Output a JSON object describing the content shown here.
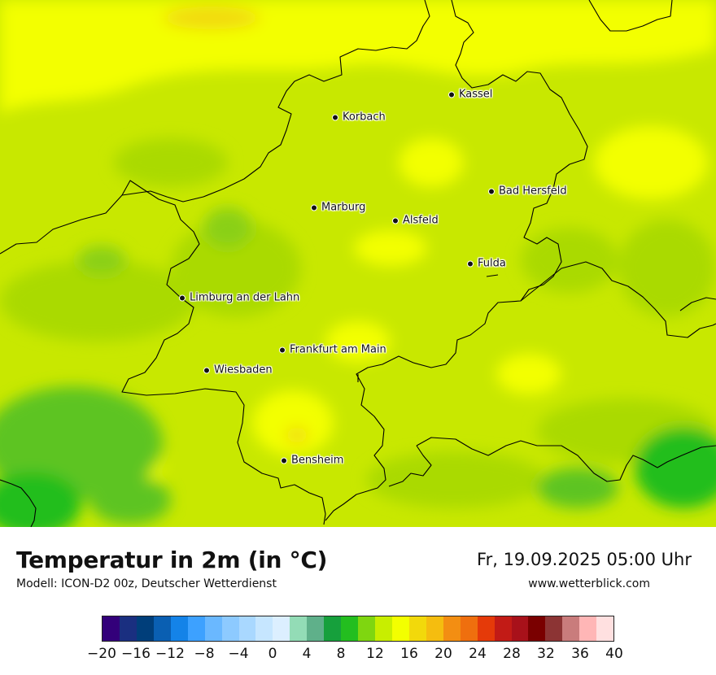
{
  "map": {
    "cities": [
      {
        "name": "Kassel"
      },
      {
        "name": "Korbach"
      },
      {
        "name": "Bad Hersfeld"
      },
      {
        "name": "Marburg"
      },
      {
        "name": "Alsfeld"
      },
      {
        "name": "Fulda"
      },
      {
        "name": "Limburg an der Lahn"
      },
      {
        "name": "Frankfurt am Main"
      },
      {
        "name": "Wiesbaden"
      },
      {
        "name": "Bensheim"
      }
    ]
  },
  "legend": {
    "title": "Temperatur in 2m (in °C)",
    "model": "Modell: ICON-D2 00z, Deutscher Wetterdienst",
    "datetime": "Fr, 19.09.2025 05:00 Uhr",
    "website": "www.wetterblick.com",
    "colorbar_colors": [
      "#33007a",
      "#1a2f80",
      "#003e7a",
      "#0a5fb2",
      "#1483e8",
      "#3da1ff",
      "#6ab8ff",
      "#8dcaff",
      "#a9d8ff",
      "#c6e6ff",
      "#dcefff",
      "#93dcb6",
      "#5fb08a",
      "#16a03c",
      "#23be1f",
      "#7fd610",
      "#c8ee00",
      "#f3ff00",
      "#f2d90b",
      "#f5bd0f",
      "#f38e12",
      "#ef6f0e",
      "#e53a09",
      "#c21b16",
      "#a8111a",
      "#7a0000",
      "#8c3434",
      "#c97c7c",
      "#ffb6b6",
      "#ffe0e0"
    ],
    "ticks": [
      "−20",
      "−16",
      "−12",
      "−8",
      "−4",
      "0",
      "4",
      "8",
      "12",
      "16",
      "20",
      "24",
      "28",
      "32",
      "36",
      "40"
    ]
  }
}
